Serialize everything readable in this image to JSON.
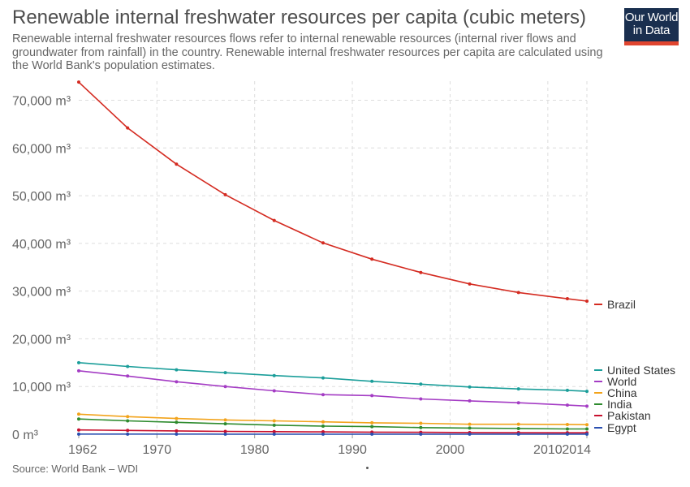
{
  "title": "Renewable internal freshwater resources per capita (cubic meters)",
  "subtitle": "Renewable internal freshwater resources flows refer to internal renewable resources (internal river flows and groundwater from rainfall) in the country. Renewable internal freshwater resources per capita are calculated using the World Bank's population estimates.",
  "logo": {
    "line1": "Our World",
    "line2": "in Data",
    "color": "#1a2f4f",
    "accent": "#e0452f"
  },
  "source": "Source: World Bank – WDI",
  "chart_data": {
    "type": "line",
    "x_ticks": [
      1962,
      1970,
      1980,
      1990,
      2000,
      2010,
      2014
    ],
    "y_ticks": [
      0,
      10000,
      20000,
      30000,
      40000,
      50000,
      60000,
      70000
    ],
    "y_tick_labels": [
      "0 m³",
      "10,000 m³",
      "20,000 m³",
      "30,000 m³",
      "40,000 m³",
      "50,000 m³",
      "60,000 m³",
      "70,000 m³"
    ],
    "xlim": [
      1962,
      2014
    ],
    "ylim": [
      0,
      74000
    ],
    "grid": true,
    "x": [
      1962,
      1967,
      1972,
      1977,
      1982,
      1987,
      1992,
      1997,
      2002,
      2007,
      2012,
      2014
    ],
    "series": [
      {
        "name": "Brazil",
        "color": "#d42b21",
        "values": [
          73800,
          64200,
          56600,
          50200,
          44800,
          40100,
          36700,
          33900,
          31500,
          29700,
          28400,
          27900
        ]
      },
      {
        "name": "United States",
        "color": "#1b9e9a",
        "values": [
          15000,
          14200,
          13500,
          12900,
          12300,
          11800,
          11100,
          10500,
          9900,
          9500,
          9200,
          9000
        ]
      },
      {
        "name": "World",
        "color": "#a43cc4",
        "values": [
          13300,
          12200,
          11000,
          10000,
          9100,
          8300,
          8100,
          7400,
          7000,
          6600,
          6100,
          5900
        ]
      },
      {
        "name": "China",
        "color": "#f2a31b",
        "values": [
          4200,
          3700,
          3300,
          3000,
          2800,
          2600,
          2400,
          2300,
          2100,
          2100,
          2050,
          2000
        ]
      },
      {
        "name": "India",
        "color": "#2e8b2e",
        "values": [
          3200,
          2800,
          2500,
          2200,
          1900,
          1700,
          1600,
          1400,
          1300,
          1200,
          1100,
          1100
        ]
      },
      {
        "name": "Pakistan",
        "color": "#c8102e",
        "values": [
          900,
          800,
          700,
          600,
          550,
          500,
          450,
          400,
          350,
          330,
          310,
          300
        ]
      },
      {
        "name": "Egypt",
        "color": "#2a4fb0",
        "values": [
          30,
          28,
          26,
          24,
          22,
          20,
          19,
          18,
          17,
          16,
          16,
          15
        ]
      }
    ],
    "legend": "right"
  }
}
